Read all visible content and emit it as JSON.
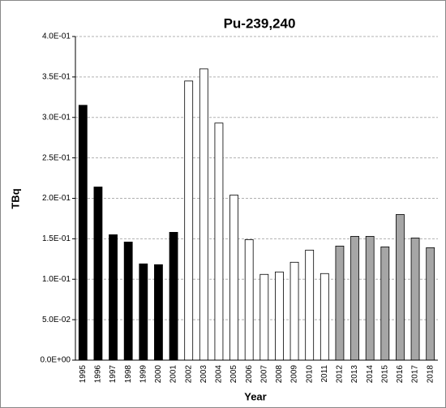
{
  "chart_data": {
    "type": "bar",
    "title": "Pu-239,240",
    "x_label": "Year",
    "y_label": "TBq",
    "categories": [
      "1995",
      "1996",
      "1997",
      "1998",
      "1999",
      "2000",
      "2001",
      "2002",
      "2003",
      "2004",
      "2005",
      "2006",
      "2007",
      "2008",
      "2009",
      "2010",
      "2011",
      "2012",
      "2013",
      "2014",
      "2015",
      "2016",
      "2017",
      "2018"
    ],
    "values": [
      0.315,
      0.214,
      0.155,
      0.146,
      0.119,
      0.118,
      0.158,
      0.345,
      0.36,
      0.293,
      0.204,
      0.149,
      0.106,
      0.109,
      0.121,
      0.136,
      0.107,
      0.141,
      0.153,
      0.153,
      0.14,
      0.18,
      0.151,
      0.139
    ],
    "colors": [
      "#000000",
      "#000000",
      "#000000",
      "#000000",
      "#000000",
      "#000000",
      "#000000",
      "#ffffff",
      "#ffffff",
      "#ffffff",
      "#ffffff",
      "#ffffff",
      "#ffffff",
      "#ffffff",
      "#ffffff",
      "#ffffff",
      "#ffffff",
      "#a6a6a6",
      "#a6a6a6",
      "#a6a6a6",
      "#a6a6a6",
      "#a6a6a6",
      "#a6a6a6",
      "#a6a6a6"
    ],
    "ylim": [
      0,
      0.4
    ],
    "yticks": [
      {
        "value": 0,
        "label": "0.0E+00"
      },
      {
        "value": 0.05,
        "label": "5.0E-02"
      },
      {
        "value": 0.1,
        "label": "1.0E-01"
      },
      {
        "value": 0.15,
        "label": "1.5E-01"
      },
      {
        "value": 0.2,
        "label": "2.0E-01"
      },
      {
        "value": 0.25,
        "label": "2.5E-01"
      },
      {
        "value": 0.3,
        "label": "3.0E-01"
      },
      {
        "value": 0.35,
        "label": "3.5E-01"
      },
      {
        "value": 0.4,
        "label": "4.0E-01"
      }
    ],
    "grid": true
  }
}
